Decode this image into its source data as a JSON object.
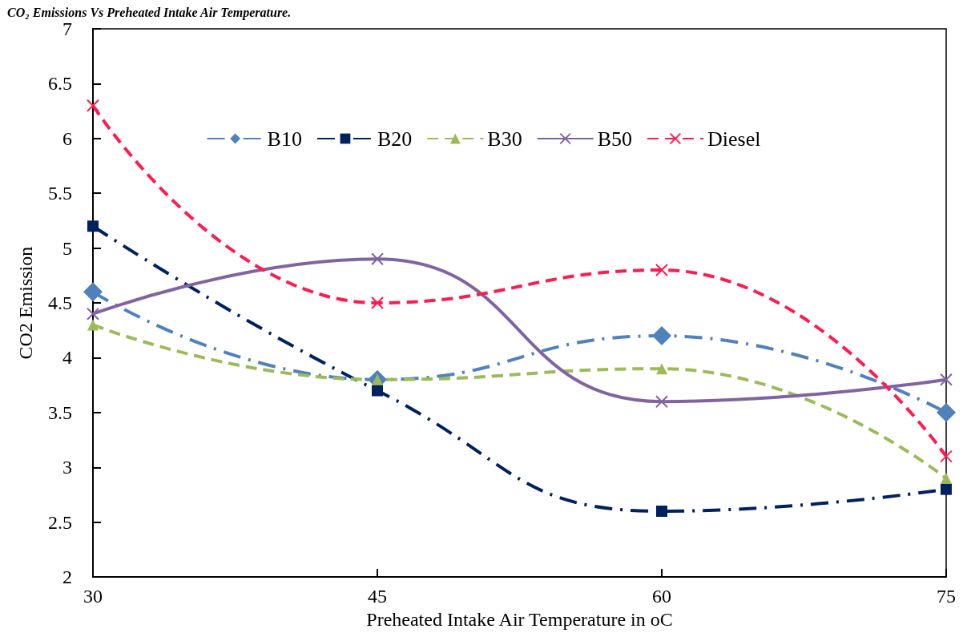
{
  "chart_data": {
    "type": "line",
    "title": "CO₂ Emissions Vs Preheated Intake Air Temperature.",
    "xlabel": "Preheated Intake Air Temperature in oC",
    "ylabel": "CO2 Emission",
    "x": [
      30,
      45,
      60,
      75
    ],
    "xlim": [
      30,
      75
    ],
    "xticks": [
      30,
      45,
      60,
      75
    ],
    "ylim": [
      2,
      7
    ],
    "yticks": [
      2,
      2.5,
      3,
      3.5,
      4,
      4.5,
      5,
      5.5,
      6,
      6.5,
      7
    ],
    "grid": false,
    "legend": "top",
    "series": [
      {
        "name": "B10",
        "color": "#4f81bd",
        "marker": "diamond",
        "line_style": "dashdot",
        "values": [
          4.6,
          3.8,
          4.2,
          3.5
        ]
      },
      {
        "name": "B20",
        "color": "#002060",
        "marker": "square",
        "line_style": "dashdot",
        "values": [
          5.2,
          3.7,
          2.6,
          2.8
        ]
      },
      {
        "name": "B30",
        "color": "#9bbb59",
        "marker": "triangle",
        "line_style": "dashed",
        "values": [
          4.3,
          3.8,
          3.9,
          2.9
        ]
      },
      {
        "name": "B50",
        "color": "#8064a2",
        "marker": "cross",
        "line_style": "solid",
        "values": [
          4.4,
          4.9,
          3.6,
          3.8
        ]
      },
      {
        "name": "Diesel",
        "color": "#ff1a4f",
        "marker": "cross",
        "line_style": "dashed",
        "values": [
          6.3,
          4.5,
          4.8,
          3.1
        ]
      }
    ]
  }
}
